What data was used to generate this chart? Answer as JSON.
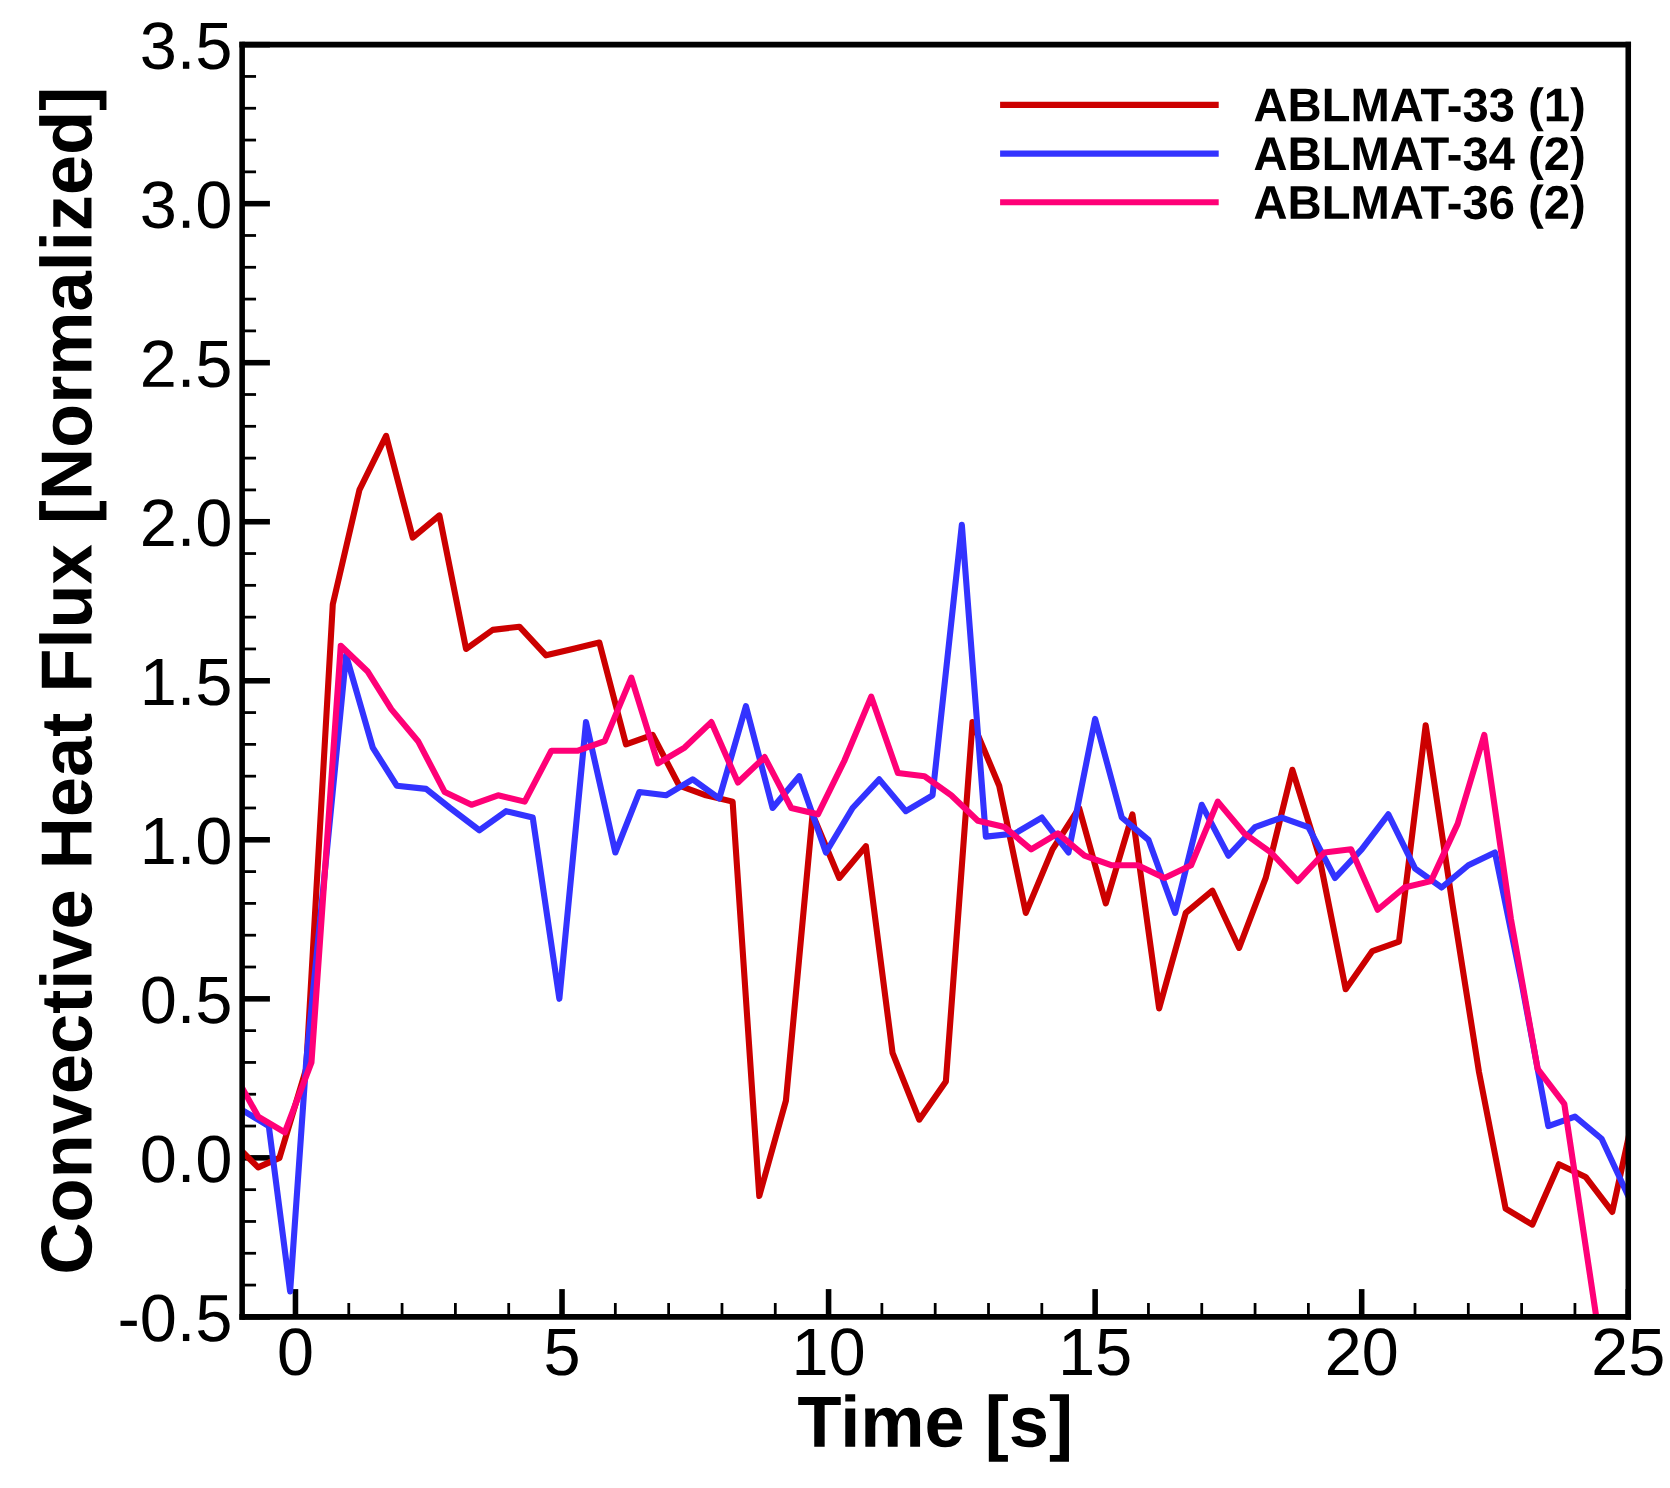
{
  "chart_data": {
    "type": "line",
    "xlabel": "Time [s]",
    "ylabel": "Convective Heat Flux [Normalized]",
    "xlim": [
      -1,
      25
    ],
    "xticks": [
      0,
      5,
      10,
      15,
      20,
      25
    ],
    "ylim": [
      -0.5,
      3.5
    ],
    "yticks": [
      -0.5,
      {
        "value": 0,
        "label": "0.0"
      },
      0.5,
      {
        "value": 1,
        "label": "1.0"
      },
      1.5,
      {
        "value": 2,
        "label": "2.0"
      },
      2.5,
      {
        "value": 3,
        "label": "3.0"
      },
      3.5
    ],
    "legend": "top right",
    "grid": false,
    "marker": "none",
    "line_style": "solid",
    "series": [
      {
        "name": "ABLMAT-33 (1)",
        "color": "#cc0000",
        "x": [
          -1,
          -0.7,
          -0.3,
          0.2,
          0.7,
          1.2,
          1.7,
          2.2,
          2.7,
          3.2,
          3.7,
          4.2,
          4.7,
          5.2,
          5.7,
          6.2,
          6.7,
          7.2,
          7.7,
          8.2,
          8.7,
          9.2,
          9.7,
          10.2,
          10.7,
          11.2,
          11.7,
          12.2,
          12.7,
          13.2,
          13.7,
          14.2,
          14.7,
          15.2,
          15.7,
          16.2,
          16.7,
          17.2,
          17.7,
          18.2,
          18.7,
          19.2,
          19.7,
          20.2,
          20.7,
          21.2,
          21.7,
          22.2,
          22.7,
          23.2,
          23.7,
          24.2,
          24.7,
          25
        ],
        "values": [
          0.02,
          -0.03,
          0.0,
          0.28,
          1.74,
          2.1,
          2.27,
          1.95,
          2.02,
          1.6,
          1.66,
          1.67,
          1.58,
          1.6,
          1.62,
          1.3,
          1.33,
          1.17,
          1.14,
          1.12,
          -0.12,
          0.18,
          1.08,
          0.88,
          0.98,
          0.33,
          0.12,
          0.24,
          1.37,
          1.17,
          0.77,
          0.97,
          1.1,
          0.8,
          1.08,
          0.47,
          0.77,
          0.84,
          0.66,
          0.88,
          1.22,
          0.95,
          0.53,
          0.65,
          0.68,
          1.36,
          0.8,
          0.27,
          -0.16,
          -0.21,
          -0.02,
          -0.06,
          -0.17,
          0.06
        ]
      },
      {
        "name": "ABLMAT-34 (2)",
        "color": "#3333ff",
        "x": [
          -1,
          -0.5,
          -0.1,
          0.2,
          0.95,
          1.45,
          1.9,
          2.45,
          2.9,
          3.45,
          3.95,
          4.45,
          4.95,
          5.45,
          6.0,
          6.45,
          6.95,
          7.45,
          7.95,
          8.45,
          8.95,
          9.45,
          9.95,
          10.45,
          10.95,
          11.45,
          11.95,
          12.5,
          12.95,
          13.5,
          14.0,
          14.5,
          15.0,
          15.5,
          16.0,
          16.5,
          17.0,
          17.5,
          18.0,
          18.5,
          19.0,
          19.5,
          20.0,
          20.5,
          21.0,
          21.5,
          22.0,
          22.5,
          23.0,
          23.5,
          24.0,
          24.5,
          25
        ],
        "values": [
          0.15,
          0.1,
          -0.42,
          0.3,
          1.58,
          1.29,
          1.17,
          1.16,
          1.1,
          1.03,
          1.09,
          1.07,
          0.5,
          1.37,
          0.96,
          1.15,
          1.14,
          1.19,
          1.13,
          1.42,
          1.1,
          1.2,
          0.96,
          1.1,
          1.19,
          1.09,
          1.14,
          1.99,
          1.01,
          1.02,
          1.07,
          0.96,
          1.38,
          1.07,
          1.0,
          0.77,
          1.11,
          0.95,
          1.04,
          1.07,
          1.04,
          0.88,
          0.97,
          1.08,
          0.91,
          0.85,
          0.92,
          0.96,
          0.55,
          0.1,
          0.13,
          0.06,
          -0.12
        ]
      },
      {
        "name": "ABLMAT-36 (2)",
        "color": "#ff0077",
        "x": [
          -1,
          -0.7,
          -0.2,
          0.3,
          0.85,
          1.35,
          1.8,
          2.3,
          2.8,
          3.3,
          3.8,
          4.3,
          4.8,
          5.3,
          5.8,
          6.3,
          6.8,
          7.3,
          7.8,
          8.3,
          8.8,
          9.3,
          9.8,
          10.3,
          10.8,
          11.3,
          11.8,
          12.3,
          12.8,
          13.3,
          13.8,
          14.3,
          14.8,
          15.3,
          15.8,
          16.3,
          16.8,
          17.3,
          17.8,
          18.3,
          18.8,
          19.3,
          19.8,
          20.3,
          20.8,
          21.3,
          21.8,
          22.3,
          22.8,
          23.3,
          23.8,
          24.4
        ],
        "values": [
          0.22,
          0.13,
          0.08,
          0.3,
          1.61,
          1.53,
          1.41,
          1.31,
          1.15,
          1.11,
          1.14,
          1.12,
          1.28,
          1.28,
          1.31,
          1.51,
          1.24,
          1.29,
          1.37,
          1.18,
          1.26,
          1.1,
          1.08,
          1.25,
          1.45,
          1.21,
          1.2,
          1.14,
          1.06,
          1.04,
          0.97,
          1.02,
          0.95,
          0.92,
          0.92,
          0.88,
          0.92,
          1.12,
          1.02,
          0.96,
          0.87,
          0.96,
          0.97,
          0.78,
          0.85,
          0.87,
          1.05,
          1.33,
          0.75,
          0.28,
          0.17,
          -0.5
        ]
      }
    ]
  }
}
